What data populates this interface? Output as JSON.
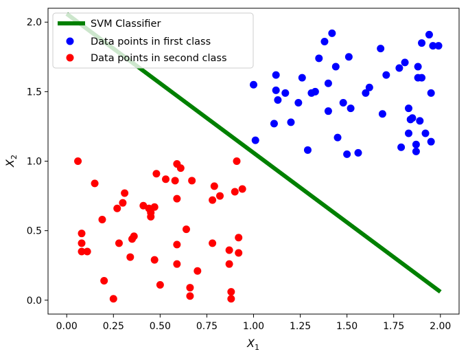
{
  "chart_data": {
    "type": "scatter",
    "xlabel": "X",
    "xlabel_sub": "1",
    "ylabel": "X",
    "ylabel_sub": "2",
    "xlim": [
      -0.1,
      2.1
    ],
    "ylim": [
      -0.1,
      2.1
    ],
    "xticks": [
      0.0,
      0.25,
      0.5,
      0.75,
      1.0,
      1.25,
      1.5,
      1.75,
      2.0
    ],
    "xtick_labels": [
      "0.00",
      "0.25",
      "0.50",
      "0.75",
      "1.00",
      "1.25",
      "1.50",
      "1.75",
      "2.00"
    ],
    "yticks": [
      0.0,
      0.5,
      1.0,
      1.5,
      2.0
    ],
    "ytick_labels": [
      "0.0",
      "0.5",
      "1.0",
      "1.5",
      "2.0"
    ],
    "grid": false,
    "legend_position": "top-left",
    "line": {
      "name": "SVM Classifier",
      "color": "#008000",
      "x": [
        0.0,
        2.0
      ],
      "y": [
        2.06,
        0.06
      ]
    },
    "series": [
      {
        "name": "Data points in first class",
        "color": "#0000ff",
        "points": [
          [
            1.0,
            1.55
          ],
          [
            1.01,
            1.15
          ],
          [
            1.11,
            1.27
          ],
          [
            1.12,
            1.62
          ],
          [
            1.12,
            1.51
          ],
          [
            1.13,
            1.44
          ],
          [
            1.17,
            1.49
          ],
          [
            1.2,
            1.28
          ],
          [
            1.24,
            1.42
          ],
          [
            1.26,
            1.6
          ],
          [
            1.29,
            1.08
          ],
          [
            1.31,
            1.49
          ],
          [
            1.33,
            1.5
          ],
          [
            1.35,
            1.74
          ],
          [
            1.38,
            1.86
          ],
          [
            1.4,
            1.56
          ],
          [
            1.4,
            1.36
          ],
          [
            1.42,
            1.92
          ],
          [
            1.44,
            1.68
          ],
          [
            1.45,
            1.17
          ],
          [
            1.48,
            1.42
          ],
          [
            1.5,
            1.05
          ],
          [
            1.51,
            1.75
          ],
          [
            1.52,
            1.38
          ],
          [
            1.56,
            1.06
          ],
          [
            1.6,
            1.49
          ],
          [
            1.62,
            1.53
          ],
          [
            1.68,
            1.81
          ],
          [
            1.69,
            1.34
          ],
          [
            1.71,
            1.62
          ],
          [
            1.78,
            1.67
          ],
          [
            1.79,
            1.1
          ],
          [
            1.81,
            1.71
          ],
          [
            1.83,
            1.38
          ],
          [
            1.83,
            1.2
          ],
          [
            1.84,
            1.3
          ],
          [
            1.85,
            1.31
          ],
          [
            1.87,
            1.07
          ],
          [
            1.87,
            1.12
          ],
          [
            1.88,
            1.68
          ],
          [
            1.88,
            1.6
          ],
          [
            1.89,
            1.29
          ],
          [
            1.9,
            1.6
          ],
          [
            1.9,
            1.85
          ],
          [
            1.92,
            1.2
          ],
          [
            1.94,
            1.91
          ],
          [
            1.95,
            1.49
          ],
          [
            1.95,
            1.14
          ],
          [
            1.96,
            1.83
          ],
          [
            1.99,
            1.83
          ]
        ]
      },
      {
        "name": "Data points in second class",
        "color": "#ff0000",
        "points": [
          [
            0.06,
            1.0
          ],
          [
            0.08,
            0.48
          ],
          [
            0.08,
            0.41
          ],
          [
            0.08,
            0.35
          ],
          [
            0.11,
            0.35
          ],
          [
            0.15,
            0.84
          ],
          [
            0.19,
            0.58
          ],
          [
            0.2,
            0.14
          ],
          [
            0.25,
            0.01
          ],
          [
            0.27,
            0.66
          ],
          [
            0.28,
            0.41
          ],
          [
            0.3,
            0.7
          ],
          [
            0.31,
            0.77
          ],
          [
            0.34,
            0.31
          ],
          [
            0.35,
            0.44
          ],
          [
            0.36,
            0.46
          ],
          [
            0.41,
            0.68
          ],
          [
            0.44,
            0.66
          ],
          [
            0.45,
            0.63
          ],
          [
            0.45,
            0.6
          ],
          [
            0.47,
            0.67
          ],
          [
            0.47,
            0.29
          ],
          [
            0.48,
            0.91
          ],
          [
            0.5,
            0.11
          ],
          [
            0.53,
            0.87
          ],
          [
            0.58,
            0.86
          ],
          [
            0.59,
            0.98
          ],
          [
            0.59,
            0.73
          ],
          [
            0.59,
            0.4
          ],
          [
            0.59,
            0.26
          ],
          [
            0.61,
            0.95
          ],
          [
            0.64,
            0.51
          ],
          [
            0.66,
            0.09
          ],
          [
            0.66,
            0.03
          ],
          [
            0.67,
            0.86
          ],
          [
            0.7,
            0.21
          ],
          [
            0.78,
            0.41
          ],
          [
            0.78,
            0.72
          ],
          [
            0.79,
            0.82
          ],
          [
            0.82,
            0.75
          ],
          [
            0.87,
            0.36
          ],
          [
            0.87,
            0.26
          ],
          [
            0.88,
            0.06
          ],
          [
            0.88,
            0.01
          ],
          [
            0.9,
            0.78
          ],
          [
            0.91,
            1.0
          ],
          [
            0.92,
            0.34
          ],
          [
            0.92,
            0.45
          ],
          [
            0.94,
            0.8
          ]
        ]
      }
    ]
  }
}
